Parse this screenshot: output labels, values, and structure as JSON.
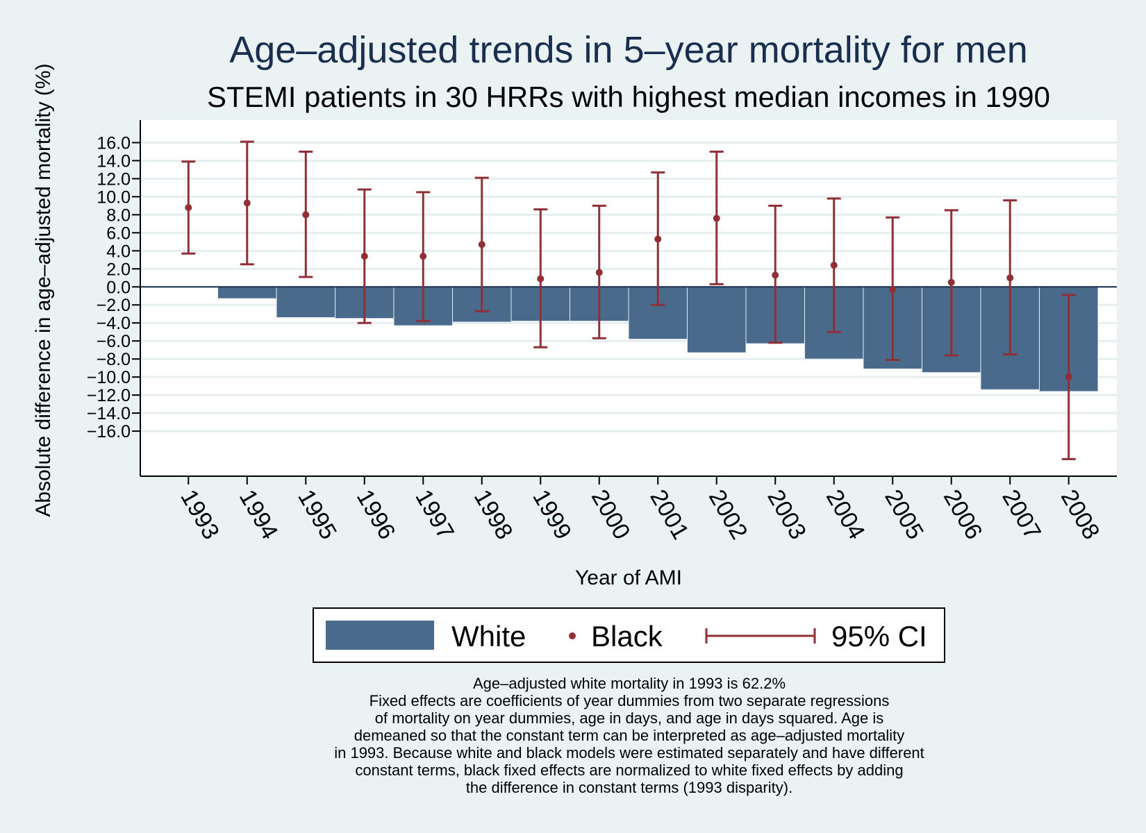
{
  "chart_data": {
    "type": "bar",
    "title": "Age–adjusted trends in 5–year mortality for men",
    "subtitle": "STEMI patients in 30 HRRs with highest median incomes in 1990",
    "xlabel": "Year of AMI",
    "ylabel": "Absolute difference in age–adjusted mortality (%)",
    "ylim": [
      -21,
      18.5
    ],
    "yticks": [
      16,
      14,
      12,
      10,
      8,
      6,
      4,
      2,
      0,
      -2,
      -4,
      -6,
      -8,
      -10,
      -12,
      -14,
      -16
    ],
    "ytick_labels": [
      "16.0",
      "14.0",
      "12.0",
      "10.0",
      "8.0",
      "6.0",
      "4.0",
      "2.0",
      "0.0",
      "−2.0",
      "−4.0",
      "−6.0",
      "−8.0",
      "−10.0",
      "−12.0",
      "−14.0",
      "−16.0"
    ],
    "grid": true,
    "categories": [
      "1993",
      "1994",
      "1995",
      "1996",
      "1997",
      "1998",
      "1999",
      "2000",
      "2001",
      "2002",
      "2003",
      "2004",
      "2005",
      "2006",
      "2007",
      "2008"
    ],
    "series": [
      {
        "name": "White",
        "kind": "bar",
        "color": "#4a6a8b",
        "values": [
          0,
          -1.3,
          -3.4,
          -3.5,
          -4.3,
          -3.9,
          -3.8,
          -3.8,
          -5.8,
          -7.3,
          -6.3,
          -8.0,
          -9.1,
          -9.5,
          -11.4,
          -11.6
        ]
      },
      {
        "name": "Black",
        "kind": "point",
        "color": "#8f2f36",
        "values": [
          8.8,
          9.3,
          8.0,
          3.4,
          3.4,
          4.7,
          0.9,
          1.6,
          5.3,
          7.6,
          1.3,
          2.4,
          -0.3,
          0.5,
          1.0,
          -10.0
        ],
        "ci_low": [
          3.7,
          2.5,
          1.1,
          -4.0,
          -3.8,
          -2.7,
          -6.7,
          -5.7,
          -2.0,
          0.3,
          -6.2,
          -5.0,
          -8.1,
          -7.6,
          -7.5,
          -19.1
        ],
        "ci_high": [
          13.9,
          16.1,
          15.0,
          10.8,
          10.5,
          12.1,
          8.6,
          9.0,
          12.7,
          15.0,
          9.0,
          9.8,
          7.7,
          8.5,
          9.6,
          -0.9
        ]
      }
    ],
    "legend": {
      "position": "bottom",
      "items": [
        "White",
        "Black",
        "95% CI"
      ]
    },
    "notes": [
      "Age–adjusted white mortality in 1993 is 62.2%",
      "Fixed effects are coefficients of year dummies from two separate regressions",
      "of mortality on year dummies, age in days, and age in days squared. Age is",
      "demeaned so that the constant term can be interpreted as age–adjusted mortality",
      "in 1993. Because white and black models were estimated separately and have different",
      "constant terms, black fixed effects are normalized to white fixed effects by adding",
      "the difference in constant terms (1993 disparity)."
    ],
    "colors": {
      "background": "#eaf2f3",
      "plot_background": "#ffffff",
      "grid": "#e6eef0",
      "bar": "#4a6a8b",
      "point": "#8f2f36",
      "title": "#1a2f4f"
    }
  }
}
